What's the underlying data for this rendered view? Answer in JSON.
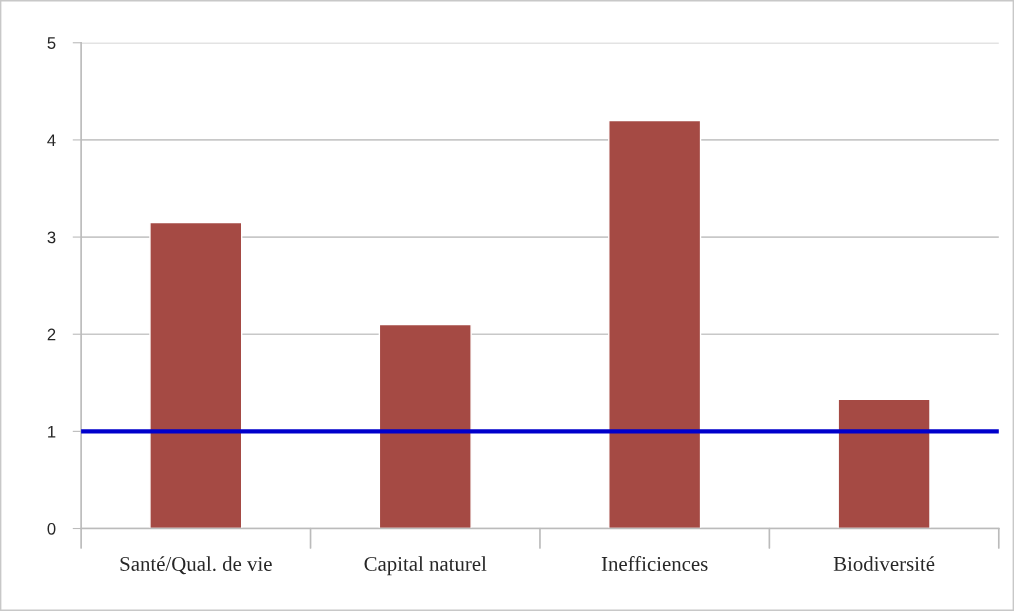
{
  "chart_data": {
    "type": "bar",
    "categories": [
      "Santé/Qual. de vie",
      "Capital naturel",
      "Inefficiences",
      "Biodiversité"
    ],
    "values": [
      3.15,
      2.1,
      4.2,
      1.33
    ],
    "color": "#a54a44",
    "ylim": [
      0,
      5
    ],
    "yticks": [
      0,
      1,
      2,
      3,
      4,
      5
    ],
    "grid": "y",
    "ref_lines": [
      {
        "axis": "y",
        "value": 1,
        "color": "#0000cc",
        "line_style": "solid"
      }
    ]
  }
}
